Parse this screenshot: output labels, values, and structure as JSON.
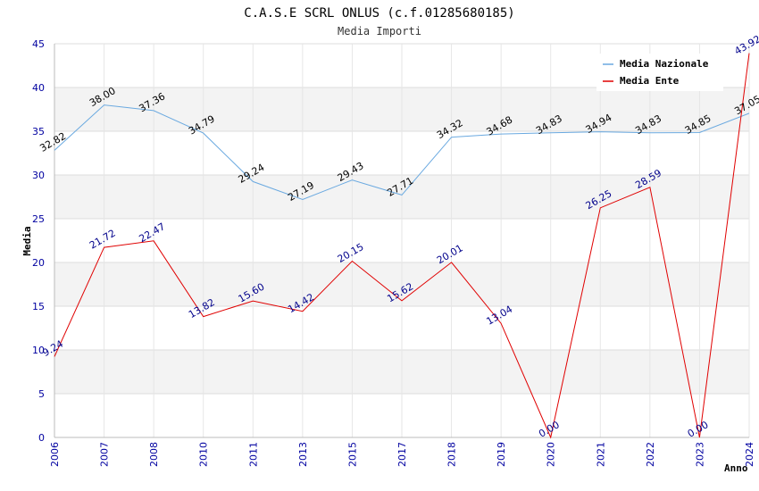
{
  "chart_data": {
    "type": "line",
    "title": "C.A.S.E SCRL ONLUS (c.f.01285680185)",
    "subtitle": "Media Importi",
    "xlabel": "Anno",
    "ylabel": "Media",
    "ylim": [
      0,
      45
    ],
    "yticks": [
      0,
      5,
      10,
      15,
      20,
      25,
      30,
      35,
      40,
      45
    ],
    "categories": [
      "2006",
      "2007",
      "2008",
      "2010",
      "2011",
      "2013",
      "2015",
      "2017",
      "2018",
      "2019",
      "2020",
      "2021",
      "2022",
      "2023",
      "2024"
    ],
    "series": [
      {
        "name": "Media Nazionale",
        "color": "#6aa9e0",
        "values": [
          32.82,
          38.0,
          37.36,
          34.79,
          29.24,
          27.19,
          29.43,
          27.71,
          34.32,
          34.68,
          34.83,
          34.94,
          34.83,
          34.85,
          37.05
        ],
        "labels": [
          "32.82",
          "38.00",
          "37.36",
          "34.79",
          "29.24",
          "27.19",
          "29.43",
          "27.71",
          "34.32",
          "34.68",
          "34.83",
          "34.94",
          "34.83",
          "34.85",
          "37.05"
        ]
      },
      {
        "name": "Media Ente",
        "color": "#e00000",
        "values": [
          9.24,
          21.72,
          22.47,
          13.82,
          15.6,
          14.42,
          20.15,
          15.62,
          20.01,
          13.04,
          0.0,
          26.25,
          28.59,
          0.0,
          43.92
        ],
        "labels": [
          "9.24",
          "21.72",
          "22.47",
          "13.82",
          "15.60",
          "14.42",
          "20.15",
          "15.62",
          "20.01",
          "13.04",
          "0.00",
          "26.25",
          "28.59",
          "0.00",
          "43.92"
        ]
      }
    ],
    "grid": true,
    "legend_position": "top-right"
  }
}
